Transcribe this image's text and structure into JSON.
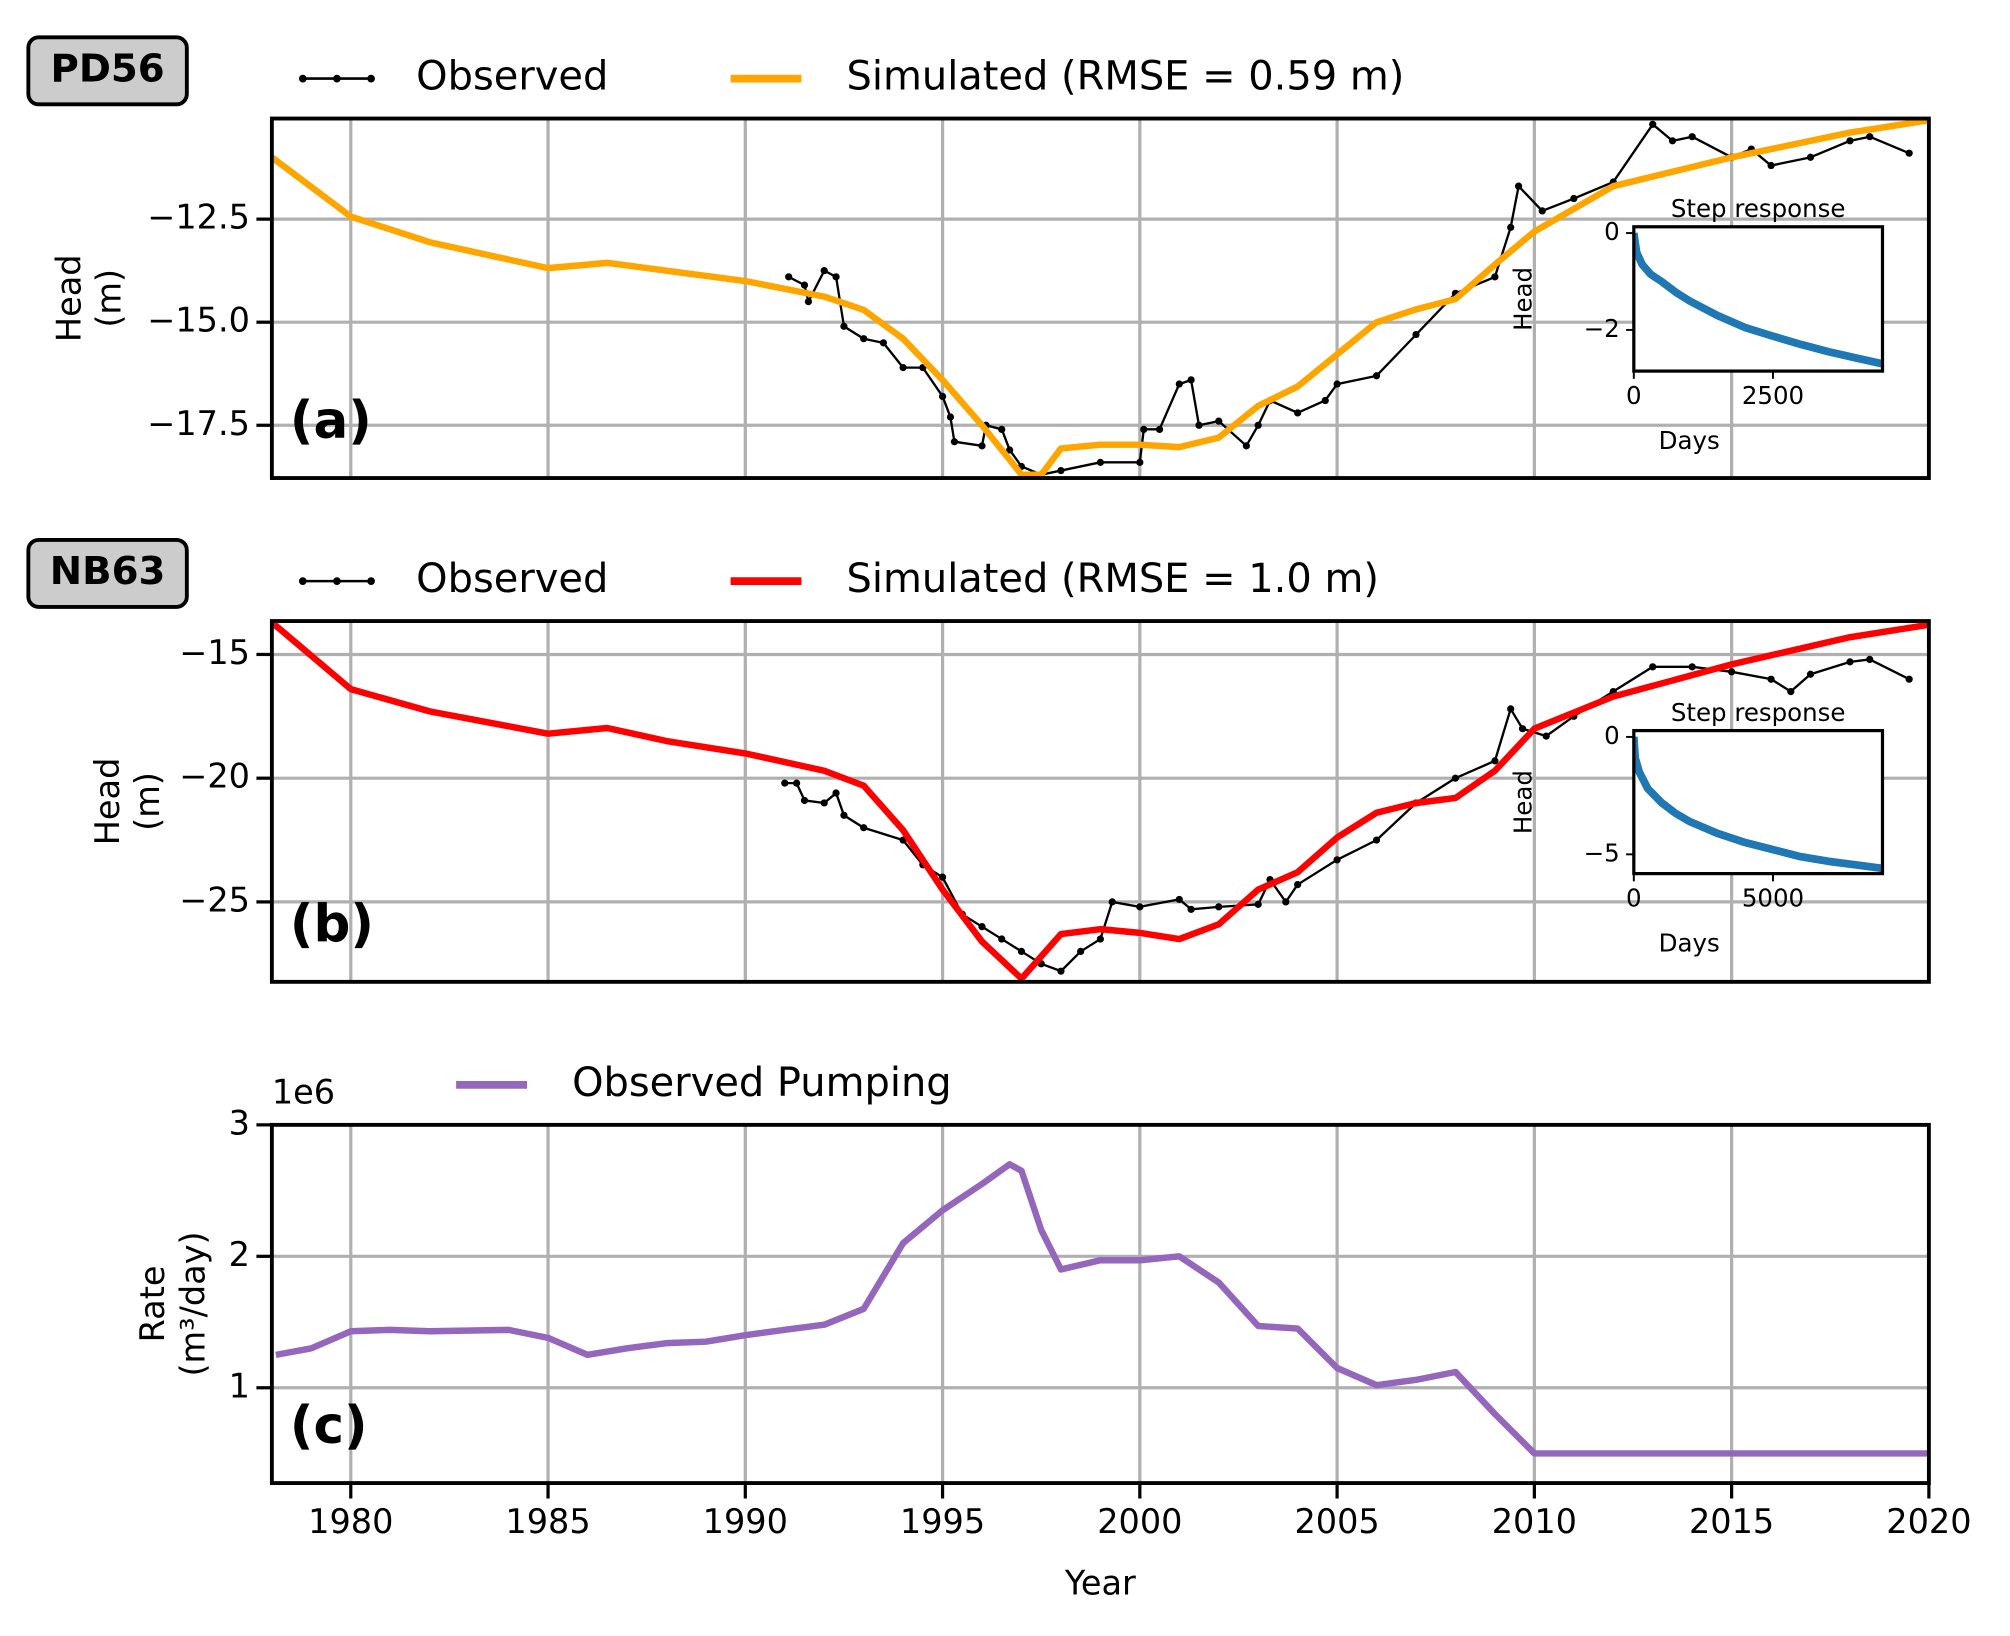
{
  "chart_data": [
    {
      "type": "line",
      "station": "PD56",
      "panel_label": "(a)",
      "ylabel": [
        "Head",
        "(m)"
      ],
      "xlim": [
        1978,
        2020
      ],
      "ylim": [
        -18.78,
        -10.06
      ],
      "xticks": [
        1980,
        1985,
        1990,
        1995,
        2000,
        2005,
        2010,
        2015,
        2020
      ],
      "show_xticklabels": false,
      "yticks": [
        {
          "value": -12.5,
          "label": "−12.5"
        },
        {
          "value": -15,
          "label": "−15.0"
        },
        {
          "value": -17.5,
          "label": "−17.5"
        }
      ],
      "grid": true,
      "series": [
        {
          "name": "Observed",
          "color": "#000000",
          "marker": true,
          "x": [
            1991.1,
            1991.5,
            1991.6,
            1992,
            1992.3,
            1992.5,
            1993,
            1993.5,
            1994,
            1994.5,
            1995,
            1995.2,
            1995.3,
            1996,
            1996.1,
            1996.5,
            1996.7,
            1997,
            1997.5,
            1998,
            1999,
            2000,
            2000.1,
            2000.5,
            2001,
            2001.3,
            2001.5,
            2002,
            2002.7,
            2003,
            2003.3,
            2004,
            2004.7,
            2005,
            2006,
            2007,
            2008,
            2009,
            2009.4,
            2009.6,
            2010.2,
            2011,
            2012,
            2013,
            2013.5,
            2014,
            2015,
            2015.5,
            2016,
            2017,
            2018,
            2018.5,
            2019.5
          ],
          "values": [
            -13.9,
            -14.1,
            -14.5,
            -13.75,
            -13.9,
            -15.1,
            -15.4,
            -15.5,
            -16.1,
            -16.1,
            -16.8,
            -17.3,
            -17.9,
            -18.0,
            -17.5,
            -17.6,
            -18.1,
            -18.5,
            -18.7,
            -18.6,
            -18.4,
            -18.4,
            -17.6,
            -17.6,
            -16.5,
            -16.4,
            -17.5,
            -17.4,
            -18.0,
            -17.5,
            -16.9,
            -17.2,
            -16.9,
            -16.5,
            -16.3,
            -15.3,
            -14.3,
            -13.9,
            -12.7,
            -11.7,
            -12.3,
            -12.0,
            -11.6,
            -10.2,
            -10.6,
            -10.5,
            -11.0,
            -10.8,
            -11.2,
            -11.0,
            -10.6,
            -10.5,
            -10.9
          ]
        },
        {
          "name": "Simulated (RMSE = 0.59 m)",
          "color": "#ffa500",
          "marker": false,
          "x": [
            1978,
            1980,
            1982,
            1985,
            1986.5,
            1988,
            1990,
            1992,
            1993,
            1994,
            1995,
            1996,
            1997,
            1997.5,
            1998,
            1999,
            2000,
            2001,
            2002,
            2003,
            2004,
            2005,
            2006,
            2007,
            2008,
            2009,
            2010,
            2012,
            2015,
            2018,
            2020
          ],
          "values": [
            -11.0,
            -12.44,
            -13.06,
            -13.69,
            -13.56,
            -13.75,
            -14.0,
            -14.38,
            -14.7,
            -15.4,
            -16.4,
            -17.5,
            -18.7,
            -18.7,
            -18.06,
            -17.97,
            -17.97,
            -18.03,
            -17.8,
            -17.03,
            -16.56,
            -15.78,
            -15.0,
            -14.69,
            -14.44,
            -13.6,
            -12.8,
            -11.7,
            -11.0,
            -10.4,
            -10.1
          ]
        }
      ]
    },
    {
      "type": "line",
      "title": "Step response",
      "xlabel": "Days",
      "ylabel": "Head",
      "xlim": [
        0,
        4468
      ],
      "ylim": [
        -2.85,
        0.13
      ],
      "xticks": [
        0,
        2500
      ],
      "show_xticklabels": true,
      "yticks": [
        0,
        {
          "value": -2,
          "label": "−2"
        }
      ],
      "grid": false,
      "series": [
        {
          "color": "#1f77b4",
          "marker": false,
          "x": [
            0,
            50,
            150,
            300,
            500,
            750,
            1000,
            1500,
            2000,
            2500,
            3000,
            3500,
            4000,
            4468
          ],
          "values": [
            0,
            -0.4,
            -0.65,
            -0.85,
            -1.0,
            -1.22,
            -1.4,
            -1.7,
            -1.95,
            -2.13,
            -2.3,
            -2.45,
            -2.58,
            -2.7
          ]
        }
      ]
    },
    {
      "type": "line",
      "station": "NB63",
      "panel_label": "(b)",
      "ylabel": [
        "Head",
        "(m)"
      ],
      "xlim": [
        1978,
        2020
      ],
      "ylim": [
        -28.23,
        -13.65
      ],
      "xticks": [
        1980,
        1985,
        1990,
        1995,
        2000,
        2005,
        2010,
        2015,
        2020
      ],
      "show_xticklabels": false,
      "yticks": [
        {
          "value": -15,
          "label": "−15"
        },
        {
          "value": -20,
          "label": "−20"
        },
        {
          "value": -25,
          "label": "−25"
        }
      ],
      "grid": true,
      "series": [
        {
          "name": "Observed",
          "color": "#000000",
          "marker": true,
          "x": [
            1991,
            1991.3,
            1991.5,
            1992,
            1992.3,
            1992.5,
            1993,
            1994,
            1994.5,
            1995,
            1995.5,
            1996,
            1996.5,
            1997,
            1997.5,
            1998,
            1998.5,
            1999,
            1999.3,
            2000,
            2001,
            2001.3,
            2002,
            2003,
            2003.3,
            2003.7,
            2004,
            2005,
            2006,
            2007,
            2008,
            2009,
            2009.4,
            2009.7,
            2010.3,
            2011,
            2012,
            2013,
            2014,
            2015,
            2016,
            2016.5,
            2017,
            2018,
            2018.5,
            2019.5
          ],
          "values": [
            -20.2,
            -20.2,
            -20.9,
            -21.0,
            -20.6,
            -21.5,
            -22.0,
            -22.5,
            -23.5,
            -24.0,
            -25.5,
            -26.0,
            -26.5,
            -27.0,
            -27.5,
            -27.8,
            -27.0,
            -26.5,
            -25.0,
            -25.2,
            -24.9,
            -25.3,
            -25.2,
            -25.1,
            -24.1,
            -25.0,
            -24.3,
            -23.3,
            -22.5,
            -21.0,
            -20.0,
            -19.3,
            -17.2,
            -18.0,
            -18.3,
            -17.5,
            -16.5,
            -15.5,
            -15.5,
            -15.7,
            -16.0,
            -16.5,
            -15.8,
            -15.3,
            -15.2,
            -16.0
          ]
        },
        {
          "name": "Simulated (RMSE = 1.0 m)",
          "color": "#ff0000",
          "marker": false,
          "x": [
            1978,
            1980,
            1982,
            1985,
            1986.5,
            1988,
            1990,
            1992,
            1993,
            1994,
            1995,
            1996,
            1997,
            1998,
            1999,
            2000,
            2001,
            2002,
            2003,
            2004,
            2005,
            2006,
            2007,
            2008,
            2009,
            2010,
            2012,
            2015,
            2018,
            2020
          ],
          "values": [
            -13.7,
            -16.4,
            -17.3,
            -18.2,
            -17.97,
            -18.5,
            -19.0,
            -19.7,
            -20.3,
            -22.1,
            -24.5,
            -26.6,
            -28.1,
            -26.3,
            -26.1,
            -26.25,
            -26.5,
            -25.9,
            -24.5,
            -23.8,
            -22.4,
            -21.4,
            -21.0,
            -20.8,
            -19.7,
            -18.0,
            -16.7,
            -15.4,
            -14.3,
            -13.8
          ]
        }
      ]
    },
    {
      "type": "line",
      "title": "Step response",
      "xlabel": "Days",
      "ylabel": "Head",
      "xlim": [
        0,
        8935
      ],
      "ylim": [
        -5.82,
        0.27
      ],
      "xticks": [
        0,
        5000
      ],
      "show_xticklabels": true,
      "yticks": [
        0,
        {
          "value": -5,
          "label": "−5"
        }
      ],
      "grid": false,
      "series": [
        {
          "color": "#1f77b4",
          "marker": false,
          "x": [
            0,
            50,
            200,
            500,
            1000,
            1500,
            2000,
            3000,
            4000,
            5000,
            6000,
            7000,
            8000,
            8935
          ],
          "values": [
            0,
            -0.9,
            -1.5,
            -2.2,
            -2.8,
            -3.25,
            -3.6,
            -4.1,
            -4.5,
            -4.8,
            -5.1,
            -5.3,
            -5.45,
            -5.6
          ]
        }
      ]
    },
    {
      "type": "line",
      "panel_label": "(c)",
      "ylabel": [
        "Rate",
        "(m³/day)"
      ],
      "offset_label": "1e6",
      "xlabel": "Year",
      "xlim": [
        1978,
        2020
      ],
      "ylim": [
        0.275,
        3
      ],
      "xticks": [
        1980,
        1985,
        1990,
        1995,
        2000,
        2005,
        2010,
        2015,
        2020
      ],
      "show_xticklabels": true,
      "yticks": [
        1,
        2,
        3
      ],
      "grid": true,
      "series": [
        {
          "name": "Observed Pumping",
          "color": "#9467bd",
          "marker": false,
          "x": [
            1978.1,
            1979,
            1980,
            1981,
            1982,
            1984,
            1985,
            1986,
            1987,
            1988,
            1989,
            1990,
            1991,
            1992,
            1993,
            1994,
            1995,
            1996,
            1996.7,
            1997,
            1997.5,
            1998,
            1999,
            2000,
            2001,
            2002,
            2003,
            2004,
            2005,
            2006,
            2007,
            2008,
            2009,
            2010,
            2015,
            2020
          ],
          "values": [
            1.25,
            1.3,
            1.43,
            1.44,
            1.43,
            1.44,
            1.38,
            1.25,
            1.3,
            1.34,
            1.35,
            1.4,
            1.44,
            1.48,
            1.6,
            2.1,
            2.35,
            2.55,
            2.7,
            2.65,
            2.2,
            1.9,
            1.97,
            1.97,
            2.0,
            1.8,
            1.47,
            1.45,
            1.15,
            1.02,
            1.06,
            1.12,
            0.8,
            0.5,
            0.5,
            0.5
          ]
        }
      ]
    }
  ]
}
